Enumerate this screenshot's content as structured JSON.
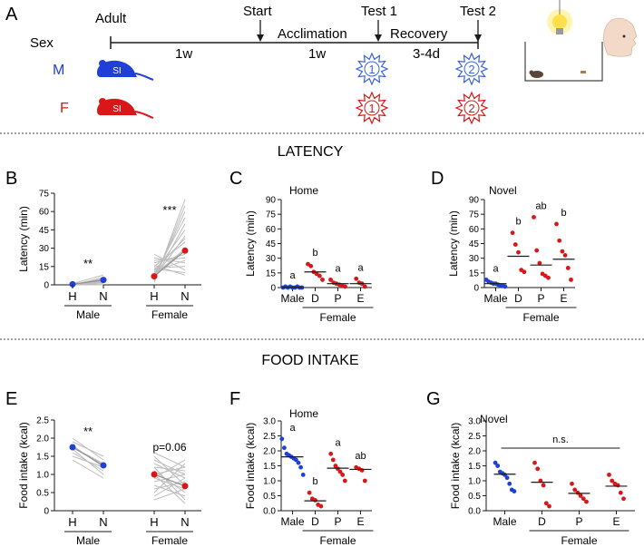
{
  "colors": {
    "male": "#1f3fd6",
    "female": "#d81818",
    "line": "#bdbdbd",
    "ink": "#1a1a1a",
    "bulb": "#ffdf4a",
    "rat": "#5a4638"
  },
  "panel_a": {
    "letter": "A",
    "sex_label": "Sex",
    "male_label": "M",
    "female_label": "F",
    "timeline": {
      "adult": "Adult",
      "start": "Start",
      "acclimation": "Acclimation",
      "test1": "Test 1",
      "recovery": "Recovery",
      "test2": "Test 2",
      "dur1": "1w",
      "dur2": "1w",
      "dur3": "3-4d"
    },
    "mouse_tag": "SI",
    "test1_badge": "1",
    "test2_badge": "2",
    "icons": [
      "mouse-icon",
      "light-bulb-icon",
      "human-face-icon",
      "cage-icon"
    ]
  },
  "section_latency": "LATENCY",
  "section_food": "FOOD INTAKE",
  "chart_data": [
    {
      "id": "B",
      "type": "line",
      "ylabel": "Latency (min)",
      "ylim": [
        0,
        75
      ],
      "yticks": [
        "0",
        "15",
        "30",
        "45",
        "60",
        "75"
      ],
      "tick_labels": [
        "H",
        "N"
      ],
      "groups": [
        "Male",
        "Female"
      ],
      "annotations": [
        "**",
        "***"
      ],
      "series": [
        {
          "name": "Male",
          "individual": [
            [
              0,
              0
            ],
            [
              0,
              1
            ],
            [
              0,
              2
            ],
            [
              0,
              3
            ],
            [
              0,
              5
            ],
            [
              0,
              6
            ],
            [
              1,
              3
            ],
            [
              1,
              8
            ],
            [
              1,
              2
            ],
            [
              0,
              4
            ]
          ],
          "mean": [
            0.5,
            4
          ]
        },
        {
          "name": "Female",
          "individual": [
            [
              2,
              70
            ],
            [
              3,
              65
            ],
            [
              5,
              60
            ],
            [
              8,
              55
            ],
            [
              4,
              50
            ],
            [
              10,
              45
            ],
            [
              6,
              40
            ],
            [
              12,
              38
            ],
            [
              15,
              35
            ],
            [
              7,
              30
            ],
            [
              9,
              28
            ],
            [
              18,
              25
            ],
            [
              20,
              22
            ],
            [
              11,
              20
            ],
            [
              22,
              18
            ],
            [
              14,
              15
            ],
            [
              25,
              12
            ],
            [
              13,
              10
            ],
            [
              16,
              8
            ]
          ],
          "mean": [
            7,
            28
          ]
        }
      ]
    },
    {
      "id": "C",
      "type": "scatter",
      "title": "Home",
      "ylabel": "Latency (min)",
      "ylim": [
        0,
        90
      ],
      "yticks": [
        "0",
        "15",
        "30",
        "45",
        "60",
        "75",
        "90"
      ],
      "categories": [
        "Male",
        "D",
        "P",
        "E"
      ],
      "group_label": "Female",
      "letters": [
        "a",
        "b",
        "a",
        "a"
      ],
      "points": [
        [
          0,
          1,
          0,
          1,
          0,
          0,
          1,
          0,
          0
        ],
        [
          24,
          22,
          16,
          14,
          12,
          8
        ],
        [
          8,
          5,
          4,
          3,
          2,
          1
        ],
        [
          9,
          5,
          4,
          1
        ]
      ],
      "means": [
        0.3,
        16,
        4,
        4
      ]
    },
    {
      "id": "D",
      "type": "scatter",
      "title": "Novel",
      "ylabel": "Latency (min)",
      "ylim": [
        0,
        90
      ],
      "yticks": [
        "0",
        "15",
        "30",
        "45",
        "60",
        "75",
        "90"
      ],
      "categories": [
        "Male",
        "D",
        "P",
        "E"
      ],
      "group_label": "Female",
      "letters": [
        "a",
        "b",
        "ab",
        "b"
      ],
      "points": [
        [
          8,
          6,
          5,
          4,
          4,
          3,
          2,
          2,
          1
        ],
        [
          56,
          44,
          36,
          18,
          16
        ],
        [
          72,
          38,
          25,
          14,
          12,
          10
        ],
        [
          65,
          48,
          37,
          33,
          20,
          8
        ]
      ],
      "means": [
        4,
        32,
        23,
        29
      ]
    },
    {
      "id": "E",
      "type": "line",
      "ylabel": "Food intake (kcal)",
      "ylim": [
        0,
        2.5
      ],
      "yticks": [
        "0",
        "0.5",
        "1.0",
        "1.5",
        "2.0",
        "2.5"
      ],
      "tick_labels": [
        "H",
        "N"
      ],
      "groups": [
        "Male",
        "Female"
      ],
      "annotations": [
        "**",
        "p=0.06"
      ],
      "series": [
        {
          "name": "Male",
          "individual": [
            [
              2.0,
              1.4
            ],
            [
              1.9,
              1.5
            ],
            [
              1.8,
              1.2
            ],
            [
              1.75,
              1.3
            ],
            [
              1.7,
              1.0
            ],
            [
              1.6,
              1.1
            ],
            [
              1.5,
              1.2
            ],
            [
              1.4,
              0.9
            ]
          ],
          "mean": [
            1.75,
            1.25
          ]
        },
        {
          "name": "Female",
          "individual": [
            [
              1.5,
              0.7
            ],
            [
              1.4,
              1.0
            ],
            [
              1.3,
              0.9
            ],
            [
              1.2,
              1.1
            ],
            [
              1.1,
              0.5
            ],
            [
              1.0,
              1.2
            ],
            [
              0.9,
              0.6
            ],
            [
              0.8,
              1.0
            ],
            [
              0.7,
              0.4
            ],
            [
              0.6,
              0.8
            ],
            [
              0.5,
              1.3
            ],
            [
              0.3,
              0.6
            ],
            [
              1.6,
              1.2
            ],
            [
              1.2,
              0.3
            ],
            [
              0.4,
              0.9
            ],
            [
              0.9,
              1.4
            ],
            [
              1.0,
              0.2
            ]
          ],
          "mean": [
            1.0,
            0.68
          ]
        }
      ]
    },
    {
      "id": "F",
      "type": "scatter",
      "title": "Home",
      "ylabel": "Food intake (kcal)",
      "ylim": [
        0,
        3.0
      ],
      "yticks": [
        "0.0",
        "0.5",
        "1.0",
        "1.5",
        "2.0",
        "2.5",
        "3.0"
      ],
      "categories": [
        "Male",
        "D",
        "P",
        "E"
      ],
      "group_label": "Female",
      "letters": [
        "a",
        "b",
        "a",
        "ab"
      ],
      "points": [
        [
          2.4,
          2.1,
          1.9,
          1.85,
          1.8,
          1.75,
          1.7,
          1.6,
          1.45,
          1.2
        ],
        [
          0.6,
          0.4,
          0.35,
          0.2,
          0.15
        ],
        [
          1.9,
          1.7,
          1.5,
          1.4,
          1.3,
          1.2,
          1.0
        ],
        [
          1.45,
          1.4,
          1.35,
          1.0
        ]
      ],
      "means": [
        1.8,
        0.33,
        1.42,
        1.38
      ]
    },
    {
      "id": "G",
      "type": "scatter",
      "title": "Novel",
      "ylabel": "Food intake (kcal)",
      "ylim": [
        0,
        3.0
      ],
      "yticks": [
        "0.0",
        "0.5",
        "1.0",
        "1.5",
        "2.0",
        "2.5",
        "3.0"
      ],
      "categories": [
        "Male",
        "D",
        "P",
        "E"
      ],
      "group_label": "Female",
      "annotation": "n.s.",
      "points": [
        [
          1.6,
          1.5,
          1.3,
          1.25,
          1.2,
          1.1,
          0.9,
          0.7,
          0.65
        ],
        [
          1.6,
          1.4,
          1.0,
          0.85,
          0.25,
          0.15
        ],
        [
          0.9,
          0.7,
          0.6,
          0.5,
          0.4,
          0.3
        ],
        [
          1.2,
          1.0,
          0.9,
          0.85,
          0.6,
          0.4
        ]
      ],
      "means": [
        1.22,
        0.95,
        0.58,
        0.82
      ]
    }
  ]
}
